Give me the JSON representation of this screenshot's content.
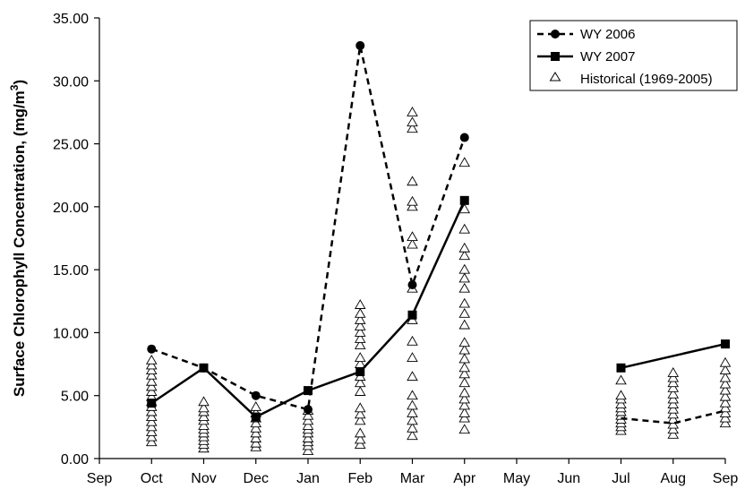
{
  "chart_data": {
    "type": "line",
    "title": "",
    "xlabel": "",
    "ylabel": "Surface Chlorophyll Concentration, (mg/m",
    "ylabel_sup": "3",
    "ylabel_close": ")",
    "categories": [
      "Sep",
      "Oct",
      "Nov",
      "Dec",
      "Jan",
      "Feb",
      "Mar",
      "Apr",
      "May",
      "Jun",
      "Jul",
      "Aug",
      "Sep"
    ],
    "y_ticks": [
      "0.00",
      "5.00",
      "10.00",
      "15.00",
      "20.00",
      "25.00",
      "30.00",
      "35.00"
    ],
    "ylim": [
      0,
      35
    ],
    "grid": false,
    "legend_position": "top-right",
    "series": [
      {
        "name": "WY 2006",
        "style": "dashed",
        "marker": "circle",
        "color": "#000000",
        "segments": [
          [
            [
              "Oct",
              8.7
            ],
            [
              "Nov",
              7.2
            ],
            [
              "Dec",
              5.0
            ],
            [
              "Jan",
              3.9
            ],
            [
              "Feb",
              32.8
            ],
            [
              "Mar",
              13.8
            ],
            [
              "Apr",
              25.5
            ]
          ],
          [
            [
              "Jul",
              3.2
            ],
            [
              "Aug",
              2.8
            ],
            [
              "Sep",
              3.8
            ]
          ]
        ],
        "markers_shown": [
          [
            "Oct",
            8.7
          ],
          [
            "Nov",
            7.2
          ],
          [
            "Dec",
            5.0
          ],
          [
            "Jan",
            3.9
          ],
          [
            "Feb",
            32.8
          ],
          [
            "Mar",
            13.8
          ],
          [
            "Apr",
            25.5
          ]
        ]
      },
      {
        "name": "WY 2007",
        "style": "solid",
        "marker": "square",
        "color": "#000000",
        "segments": [
          [
            [
              "Oct",
              4.4
            ],
            [
              "Nov",
              7.2
            ],
            [
              "Dec",
              3.3
            ],
            [
              "Jan",
              5.4
            ],
            [
              "Feb",
              6.9
            ],
            [
              "Mar",
              11.4
            ],
            [
              "Apr",
              20.5
            ]
          ],
          [
            [
              "Jul",
              7.2
            ],
            [
              "Sep",
              9.1
            ]
          ]
        ],
        "markers_shown": [
          [
            "Oct",
            4.4
          ],
          [
            "Nov",
            7.2
          ],
          [
            "Dec",
            3.3
          ],
          [
            "Jan",
            5.4
          ],
          [
            "Feb",
            6.9
          ],
          [
            "Mar",
            11.4
          ],
          [
            "Apr",
            20.5
          ],
          [
            "Jul",
            7.2
          ],
          [
            "Sep",
            9.1
          ]
        ]
      },
      {
        "name": "Historical (1969-2005)",
        "style": "scatter",
        "marker": "open-triangle",
        "color": "#000000",
        "points": {
          "Oct": [
            1.3,
            1.7,
            2.1,
            2.5,
            2.9,
            3.3,
            3.7,
            4.1,
            4.5,
            4.9,
            5.3,
            5.7,
            6.1,
            6.6,
            7.0,
            7.4,
            7.8
          ],
          "Nov": [
            0.8,
            1.1,
            1.4,
            1.7,
            2.0,
            2.3,
            2.6,
            3.0,
            3.3,
            3.7,
            4.0,
            4.5
          ],
          "Dec": [
            0.9,
            1.2,
            1.6,
            2.0,
            2.4,
            2.8,
            3.2,
            3.6,
            4.1
          ],
          "Jan": [
            0.6,
            1.0,
            1.3,
            1.6,
            2.0,
            2.3,
            2.6,
            3.0,
            3.4,
            3.8
          ],
          "Feb": [
            1.1,
            1.5,
            2.0,
            3.0,
            3.5,
            4.0,
            5.3,
            6.0,
            6.5,
            7.5,
            8.0,
            9.0,
            9.5,
            10.0,
            10.5,
            11.0,
            11.5,
            12.2
          ],
          "Mar": [
            1.8,
            2.4,
            3.0,
            3.6,
            4.2,
            5.0,
            6.5,
            8.0,
            9.3,
            11.0,
            13.5,
            17.0,
            17.6,
            20.0,
            20.4,
            22.0,
            26.2,
            26.7,
            27.5
          ],
          "Apr": [
            2.3,
            3.2,
            3.6,
            4.2,
            4.7,
            5.2,
            6.0,
            6.7,
            7.2,
            7.9,
            8.6,
            9.2,
            10.6,
            11.5,
            12.3,
            13.5,
            14.3,
            15.0,
            16.1,
            16.7,
            18.2,
            19.8,
            23.5
          ],
          "Jul": [
            2.2,
            2.5,
            2.8,
            3.1,
            3.4,
            3.7,
            4.0,
            4.3,
            4.7,
            5.0,
            6.2
          ],
          "Aug": [
            1.9,
            2.3,
            2.7,
            3.1,
            3.5,
            3.9,
            4.3,
            4.7,
            5.1,
            5.6,
            6.0,
            6.4,
            6.8
          ],
          "Sep": [
            2.8,
            3.2,
            3.6,
            4.0,
            4.4,
            4.9,
            5.4,
            5.9,
            6.4,
            7.0,
            7.6
          ]
        }
      }
    ]
  }
}
